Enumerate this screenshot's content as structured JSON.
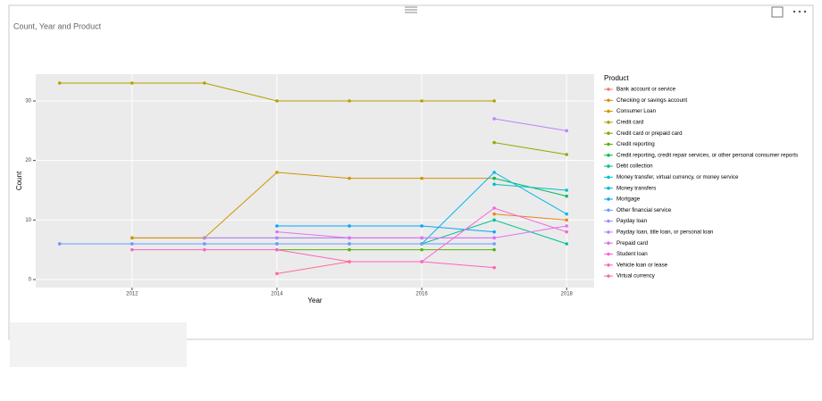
{
  "visual": {
    "title": "Count, Year and Product"
  },
  "chart_data": {
    "type": "line",
    "x_label": "Year",
    "y_label": "Count",
    "legend_title": "Product",
    "legend": "right",
    "grid": true,
    "x": [
      2011,
      2012,
      2013,
      2014,
      2015,
      2016,
      2017,
      2018
    ],
    "xlim": [
      2010.67,
      2018.38
    ],
    "xticks": [
      2012,
      2014,
      2016,
      2018
    ],
    "ylim": [
      -1.35,
      34.5
    ],
    "yticks": [
      0,
      10,
      20,
      30
    ],
    "series": [
      {
        "name": "Bank account or service",
        "color": "#F8766D",
        "values": [
          null,
          7,
          7,
          7,
          7,
          7,
          null,
          null
        ]
      },
      {
        "name": "Checking or savings account",
        "color": "#E7861B",
        "values": [
          null,
          null,
          null,
          null,
          null,
          null,
          11,
          10
        ]
      },
      {
        "name": "Consumer Loan",
        "color": "#D09400",
        "values": [
          null,
          7,
          7,
          18,
          17,
          17,
          17,
          null
        ]
      },
      {
        "name": "Credit card",
        "color": "#B2A100",
        "values": [
          33,
          33,
          33,
          30,
          30,
          30,
          30,
          null
        ]
      },
      {
        "name": "Credit card or prepaid card",
        "color": "#8BAB00",
        "values": [
          null,
          null,
          null,
          null,
          null,
          null,
          23,
          21
        ]
      },
      {
        "name": "Credit reporting",
        "color": "#53B400",
        "values": [
          null,
          null,
          null,
          5,
          5,
          5,
          5,
          null
        ]
      },
      {
        "name": "Credit reporting, credit repair services, or other personal consumer reports",
        "color": "#00BC56",
        "values": [
          null,
          null,
          null,
          null,
          null,
          null,
          17,
          14
        ]
      },
      {
        "name": "Debt collection",
        "color": "#00C094",
        "values": [
          null,
          null,
          null,
          6,
          6,
          6,
          10,
          6
        ]
      },
      {
        "name": "Money transfer, virtual currency, or money service",
        "color": "#00BFC4",
        "values": [
          null,
          null,
          null,
          null,
          null,
          null,
          16,
          15
        ]
      },
      {
        "name": "Money transfers",
        "color": "#00B6EB",
        "values": [
          6,
          6,
          6,
          6,
          6,
          6,
          18,
          11
        ]
      },
      {
        "name": "Mortgage",
        "color": "#06A4FF",
        "values": [
          null,
          null,
          null,
          9,
          9,
          9,
          8,
          null
        ]
      },
      {
        "name": "Other financial service",
        "color": "#6F9BFF",
        "values": [
          6,
          6,
          6,
          6,
          6,
          6,
          6,
          null
        ]
      },
      {
        "name": "Payday loan",
        "color": "#A58AFF",
        "values": [
          null,
          null,
          7,
          7,
          7,
          7,
          7,
          null
        ]
      },
      {
        "name": "Payday loan, title loan, or personal loan",
        "color": "#B983FF",
        "values": [
          null,
          null,
          null,
          null,
          null,
          null,
          27,
          25
        ]
      },
      {
        "name": "Prepaid card",
        "color": "#DF70F8",
        "values": [
          null,
          null,
          null,
          8,
          7,
          7,
          7,
          9
        ]
      },
      {
        "name": "Student loan",
        "color": "#FB61D7",
        "values": [
          null,
          null,
          null,
          null,
          null,
          3,
          12,
          8
        ]
      },
      {
        "name": "Vehicle loan or lease",
        "color": "#FF62BC",
        "values": [
          null,
          5,
          5,
          5,
          3,
          3,
          2,
          null
        ]
      },
      {
        "name": "Virtual currency",
        "color": "#FF6C91",
        "values": [
          null,
          null,
          null,
          1,
          3,
          null,
          null,
          null
        ]
      }
    ]
  }
}
